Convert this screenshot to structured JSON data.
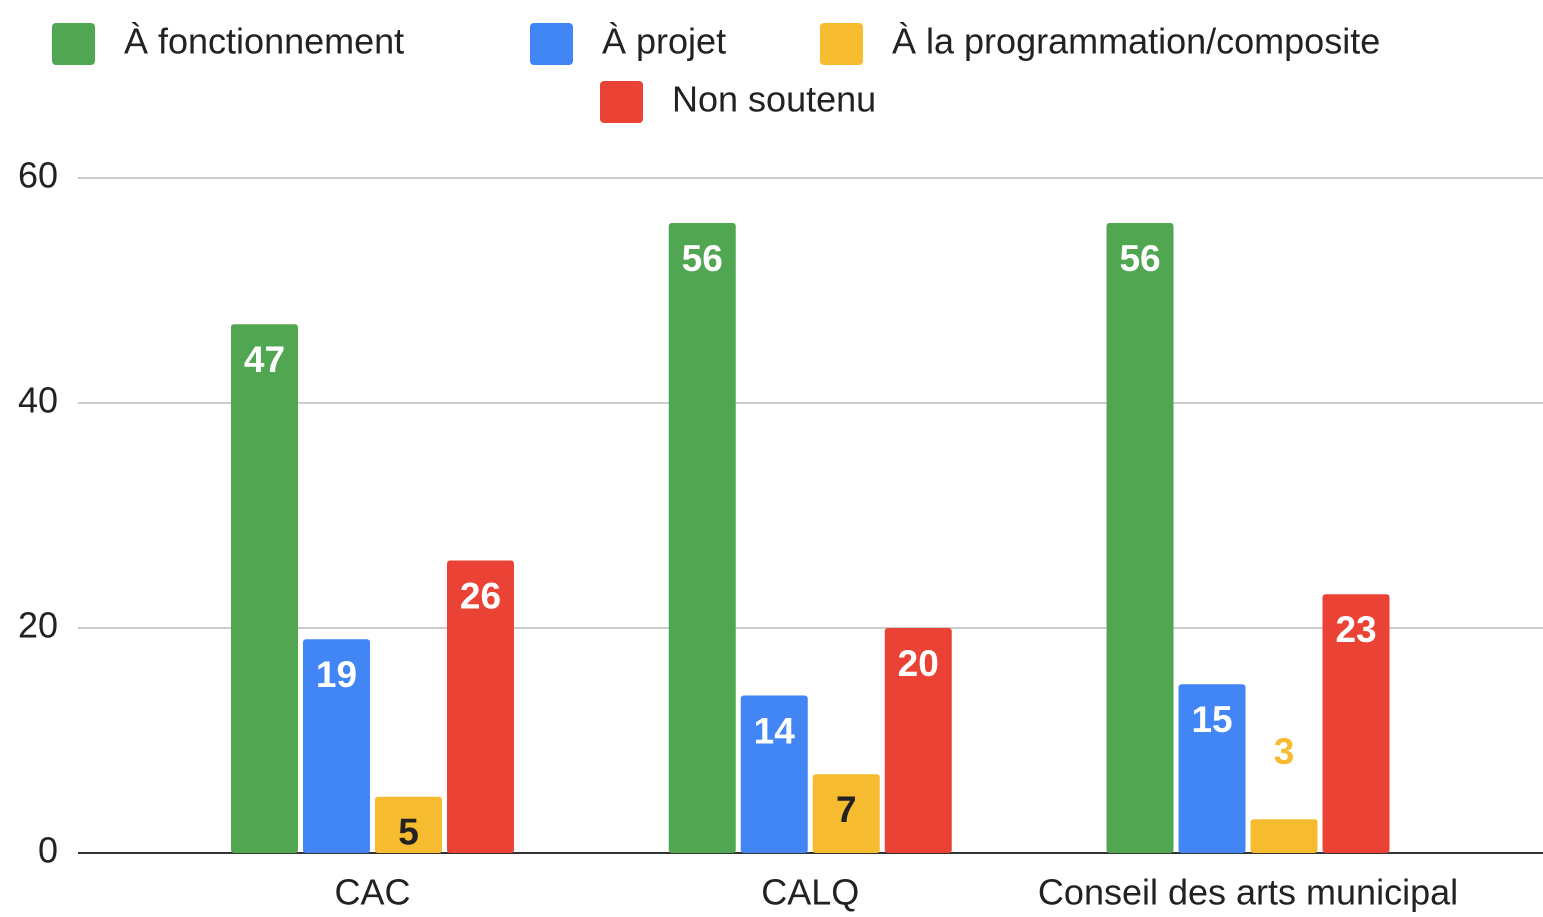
{
  "chart_data": {
    "type": "bar",
    "categories": [
      "CAC",
      "CALQ",
      "Conseil des arts municipal"
    ],
    "series": [
      {
        "name": "À fonctionnement",
        "color": "#51a652",
        "values": [
          47,
          56,
          56
        ]
      },
      {
        "name": "À projet",
        "color": "#4285f4",
        "values": [
          19,
          14,
          15
        ]
      },
      {
        "name": "À la programmation/composite",
        "color": "#f6bb2f",
        "values": [
          5,
          7,
          3
        ]
      },
      {
        "name": "Non soutenu",
        "color": "#ea4335",
        "values": [
          26,
          20,
          23
        ]
      }
    ],
    "ylim": [
      0,
      60
    ],
    "yticks": [
      0,
      20,
      40,
      60
    ],
    "grid": true,
    "legend": "top"
  }
}
